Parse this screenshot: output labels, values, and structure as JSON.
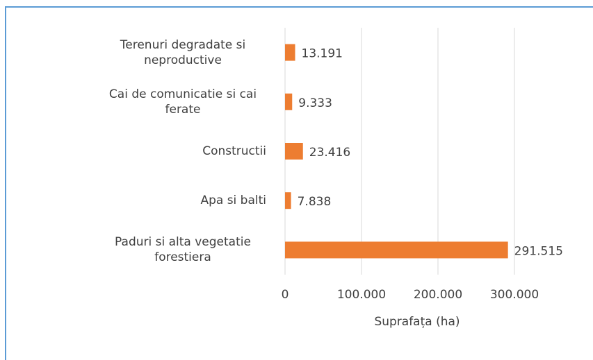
{
  "chart_data": {
    "type": "barh",
    "categories": [
      "Terenuri degradate si neproductive",
      "Cai de comunicatie si cai ferate",
      "Constructii",
      "Apa si balti",
      "Paduri si alta vegetatie forestiera"
    ],
    "values": [
      13191,
      9333,
      23416,
      7838,
      291515
    ],
    "value_labels": [
      "13.191",
      "9.333",
      "23.416",
      "7.838",
      "291.515"
    ],
    "color": "#ed7d31",
    "xlabel": "Suprafața (ha)",
    "xlim": [
      0,
      350000
    ],
    "xticks": [
      0,
      {
        "value": 100000,
        "label": "100.000"
      },
      {
        "value": 200000,
        "label": "200.000"
      },
      {
        "value": 300000,
        "label": "300.000"
      }
    ],
    "grid": true
  }
}
